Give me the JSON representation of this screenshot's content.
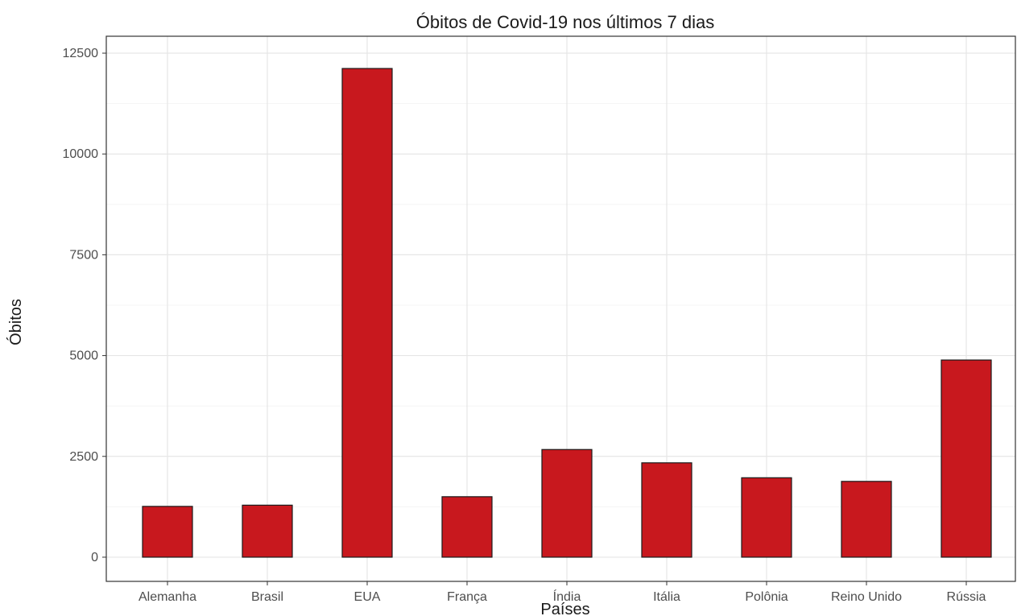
{
  "chart_data": {
    "type": "bar",
    "title": "Óbitos de Covid-19 nos últimos 7 dias",
    "xlabel": "Países",
    "ylabel": "Óbitos",
    "categories": [
      "Alemanha",
      "Brasil",
      "EUA",
      "França",
      "Índia",
      "Itália",
      "Polônia",
      "Reino Unido",
      "Rússia"
    ],
    "values": [
      1260,
      1290,
      12120,
      1500,
      2670,
      2340,
      1970,
      1880,
      4890
    ],
    "ylim": [
      -600,
      12920
    ],
    "yticks": [
      0,
      2500,
      5000,
      7500,
      10000,
      12500
    ],
    "ytick_labels": [
      "0",
      "2500",
      "5000",
      "7500",
      "10000",
      "12500"
    ],
    "bar_color": "#c8181e",
    "grid": true,
    "legend": "none"
  }
}
